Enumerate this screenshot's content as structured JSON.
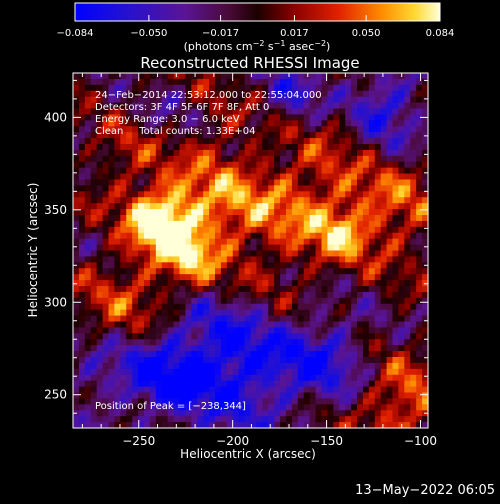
{
  "chart_data": {
    "type": "heatmap",
    "title": "Reconstructed RHESSI Image",
    "xlabel": "Heliocentric X (arcsec)",
    "ylabel": "Heliocentric Y (arcsec)",
    "xlim": [
      -285,
      -96
    ],
    "ylim": [
      232,
      424
    ],
    "xticks": [
      -250,
      -200,
      -150,
      -100
    ],
    "yticks": [
      250,
      300,
      350,
      400
    ],
    "colorbar": {
      "range": [
        -0.084,
        0.084
      ],
      "ticks": [
        -0.084,
        -0.05,
        -0.017,
        0.017,
        0.05,
        0.084
      ],
      "tick_labels": [
        "−0.084",
        "−0.050",
        "−0.017",
        "0.017",
        "0.050",
        "0.084"
      ],
      "label_prefix": "(photons cm",
      "label_sup1": "−2",
      "label_mid1": " s",
      "label_sup2": "−1",
      "label_mid2": " asec",
      "label_sup3": "−2",
      "label_suffix": ")"
    },
    "annotations": [
      "24−Feb−2014 22:53:12.000 to 22:55:04.000",
      "Detectors: 3F 4F 5F 6F 7F 8F, Att 0",
      "Energy Range: 3.0 − 6.0 keV",
      "Clean     Total counts: 1.33E+04"
    ],
    "peak_label": "Position of Peak = [−238,344]",
    "peak": {
      "x": -238,
      "y": 344
    },
    "grid": false,
    "hotspots": [
      {
        "x": -238,
        "y": 344,
        "sigma": 13,
        "amp": 0.095
      },
      {
        "x": -222,
        "y": 322,
        "sigma": 12,
        "amp": 0.05
      },
      {
        "x": -208,
        "y": 352,
        "sigma": 20,
        "amp": 0.05
      },
      {
        "x": -160,
        "y": 352,
        "sigma": 22,
        "amp": 0.045
      },
      {
        "x": -142,
        "y": 337,
        "sigma": 9,
        "amp": 0.04
      },
      {
        "x": -255,
        "y": 300,
        "sigma": 18,
        "amp": 0.035
      },
      {
        "x": -182,
        "y": 302,
        "sigma": 18,
        "amp": 0.02
      },
      {
        "x": -115,
        "y": 350,
        "sigma": 18,
        "amp": 0.04
      },
      {
        "x": -110,
        "y": 245,
        "sigma": 16,
        "amp": 0.05
      },
      {
        "x": -210,
        "y": 395,
        "sigma": 14,
        "amp": 0.015
      },
      {
        "x": -258,
        "y": 378,
        "sigma": 12,
        "amp": 0.025
      },
      {
        "x": -140,
        "y": 395,
        "sigma": 12,
        "amp": 0.02
      }
    ],
    "coldspots": [
      {
        "x": -200,
        "y": 268,
        "sigma": 26,
        "amp": -0.08
      },
      {
        "x": -240,
        "y": 260,
        "sigma": 16,
        "amp": -0.055
      },
      {
        "x": -150,
        "y": 270,
        "sigma": 16,
        "amp": -0.05
      },
      {
        "x": -120,
        "y": 405,
        "sigma": 16,
        "amp": -0.06
      },
      {
        "x": -168,
        "y": 413,
        "sigma": 12,
        "amp": -0.04
      },
      {
        "x": -275,
        "y": 260,
        "sigma": 14,
        "amp": -0.03
      },
      {
        "x": -232,
        "y": 402,
        "sigma": 10,
        "amp": -0.02
      }
    ]
  },
  "footer": {
    "date": "13−May−2022 06:05"
  }
}
